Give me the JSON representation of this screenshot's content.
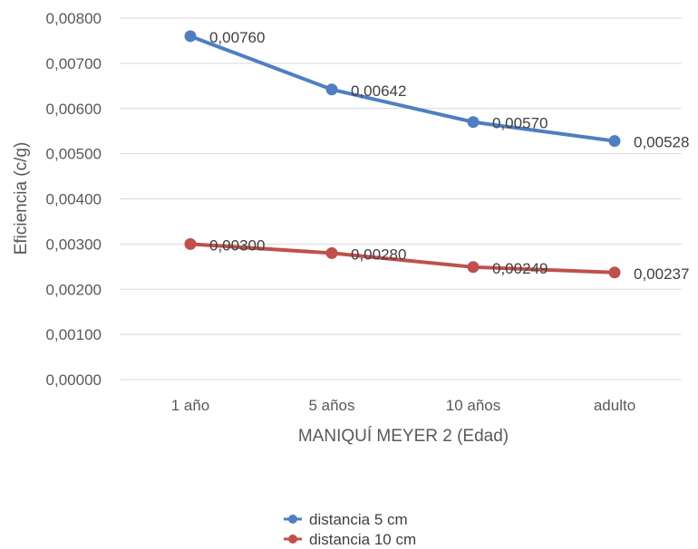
{
  "chart_data": {
    "type": "line",
    "categories": [
      "1 año",
      "5 años",
      "10 años",
      "adulto"
    ],
    "series": [
      {
        "name": "distancia 5 cm",
        "values": [
          0.0076,
          0.00642,
          0.0057,
          0.00528
        ],
        "labels": [
          "0,00760",
          "0,00642",
          "0,00570",
          "0,00528"
        ],
        "color": "#4e7fc1"
      },
      {
        "name": "distancia 10 cm",
        "values": [
          0.003,
          0.0028,
          0.00249,
          0.00237
        ],
        "labels": [
          "0,00300",
          "0,00280",
          "0,00249",
          "0,00237"
        ],
        "color": "#c0504d"
      }
    ],
    "xlabel": "MANIQUÍ MEYER 2 (Edad)",
    "ylabel": "Eficiencia (c/g)",
    "ylim": [
      0,
      0.008
    ],
    "yticks": [
      {
        "value": 0.0,
        "label": "0,00000"
      },
      {
        "value": 0.001,
        "label": "0,00100"
      },
      {
        "value": 0.002,
        "label": "0,00200"
      },
      {
        "value": 0.003,
        "label": "0,00300"
      },
      {
        "value": 0.004,
        "label": "0,00400"
      },
      {
        "value": 0.005,
        "label": "0,00500"
      },
      {
        "value": 0.006,
        "label": "0,00600"
      },
      {
        "value": 0.007,
        "label": "0,00700"
      },
      {
        "value": 0.008,
        "label": "0,00800"
      }
    ],
    "grid": true,
    "legend": "bottom"
  }
}
